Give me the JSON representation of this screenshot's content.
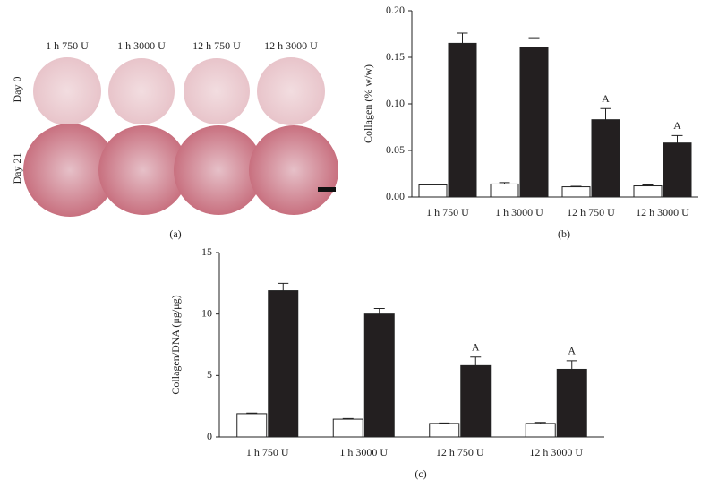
{
  "figure": {
    "column_labels": [
      "1 h 750 U",
      "1 h 3000 U",
      "12 h 750 U",
      "12 h 3000 U"
    ],
    "row_labels": [
      "Day 0",
      "Day 21"
    ],
    "caption": "(a)"
  },
  "chart_data": [
    {
      "type": "bar",
      "caption": "(b)",
      "y_label": "Collagen (% w/w)",
      "categories": [
        "1 h 750 U",
        "1 h 3000 U",
        "12 h 750 U",
        "12 h 3000 U"
      ],
      "series": [
        {
          "color": "#ffffff",
          "values": [
            0.013,
            0.014,
            0.011,
            0.012
          ],
          "errors": [
            0.001,
            0.0015,
            0.0005,
            0.001
          ]
        },
        {
          "color": "#231f20",
          "values": [
            0.165,
            0.161,
            0.083,
            0.058
          ],
          "errors": [
            0.011,
            0.01,
            0.012,
            0.008
          ],
          "annotations": [
            null,
            null,
            "A",
            "A"
          ]
        }
      ],
      "ylim": [
        0,
        0.2
      ],
      "yticks": [
        {
          "value": 0,
          "label": "0.00"
        },
        {
          "value": 0.05,
          "label": "0.05"
        },
        {
          "value": 0.1,
          "label": "0.10"
        },
        {
          "value": 0.15,
          "label": "0.15"
        },
        {
          "value": 0.2,
          "label": "0.20"
        }
      ]
    },
    {
      "type": "bar",
      "caption": "(c)",
      "y_label": "Collagen/DNA (μg/μg)",
      "categories": [
        "1 h 750 U",
        "1 h 3000 U",
        "12 h 750 U",
        "12 h 3000 U"
      ],
      "series": [
        {
          "color": "#ffffff",
          "values": [
            1.9,
            1.45,
            1.1,
            1.1
          ],
          "errors": [
            0.05,
            0.05,
            0.04,
            0.08
          ]
        },
        {
          "color": "#231f20",
          "values": [
            11.9,
            10.0,
            5.8,
            5.5
          ],
          "errors": [
            0.6,
            0.45,
            0.7,
            0.7
          ],
          "annotations": [
            null,
            null,
            "A",
            "A"
          ]
        }
      ],
      "ylim": [
        0,
        15
      ],
      "yticks": [
        0,
        5,
        10,
        15
      ]
    }
  ]
}
